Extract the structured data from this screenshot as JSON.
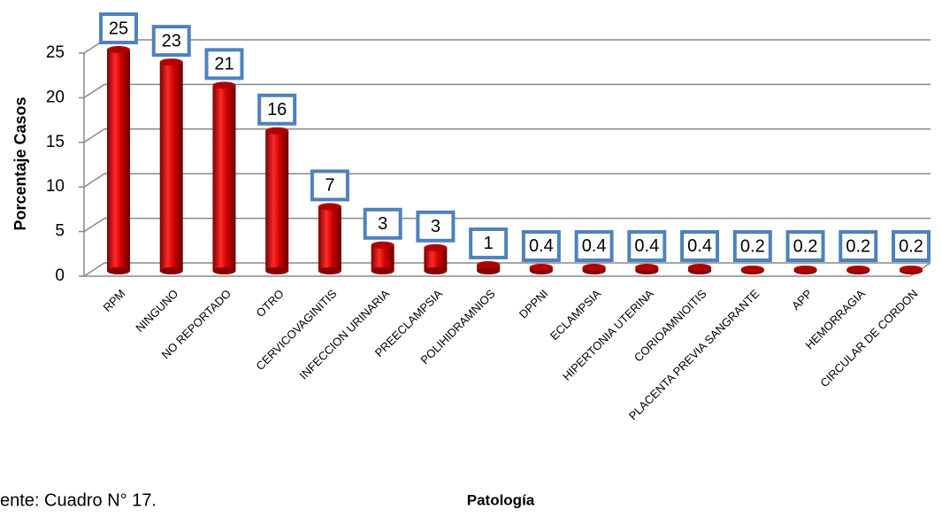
{
  "chart_data": {
    "type": "bar",
    "title": null,
    "source": "ente: Cuadro N° 17.",
    "x_label": "Patología",
    "y_label": "Porcentaje Casos",
    "categories": [
      "RPM",
      "NINGUNO",
      "NO REPORTADO",
      "OTRO",
      "CERVICOVAGINITIS",
      "INFECCION URINARIA",
      "PREECLAMPSIA",
      "POLIHIDRAMNIOS",
      "DPPNI",
      "ECLAMPSIA",
      "HIPERTONIA UTERINA",
      "CORIOAMNIOITIS",
      "PLACENTA PREVIA SANGRANTE",
      "APP",
      "HEMORRAGIA",
      "CIRCULAR DE CORDON"
    ],
    "values": [
      24.8,
      23.4,
      20.8,
      15.7,
      7.2,
      2.9,
      2.6,
      0.7,
      0.4,
      0.4,
      0.4,
      0.4,
      0.2,
      0.2,
      0.2,
      0.2
    ],
    "value_labels": [
      "25",
      "23",
      "21",
      "16",
      "7",
      "3",
      "3",
      "1",
      "0.4",
      "0.4",
      "0.4",
      "0.4",
      "0.2",
      "0.2",
      "0.2",
      "0.2"
    ],
    "color": "#c00000",
    "label_box_color": "#4f81bd",
    "ylim": [
      0,
      25
    ],
    "yticks": [
      0,
      5,
      10,
      15,
      20,
      25
    ],
    "grid": true
  }
}
